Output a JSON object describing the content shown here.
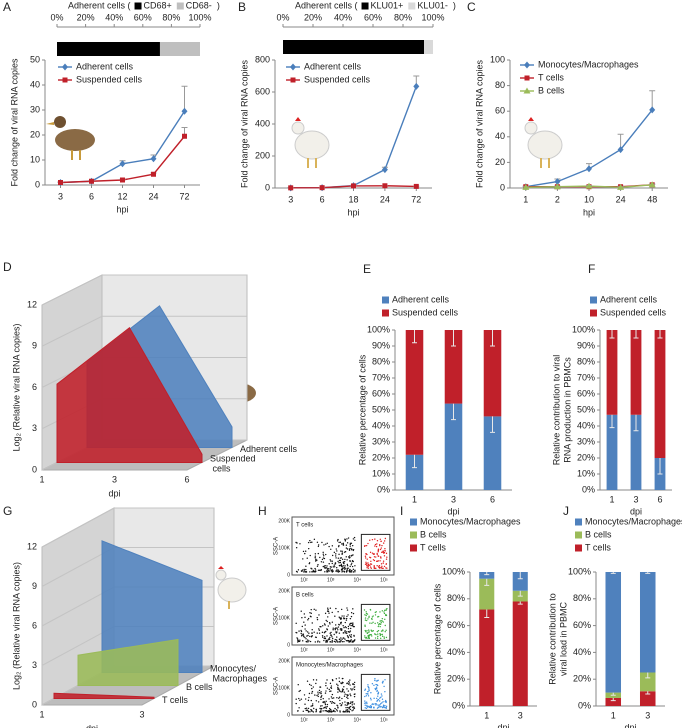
{
  "chart_data": [
    {
      "type": "hbar100",
      "title": "Adherent cells (",
      "title_end": ")",
      "xlim": [
        0,
        100
      ],
      "xticks": [
        {
          "value": 0,
          "label": "0%"
        },
        {
          "value": 20,
          "label": "20%"
        },
        {
          "value": 40,
          "label": "40%"
        },
        {
          "value": 60,
          "label": "60%"
        },
        {
          "value": 80,
          "label": "80%"
        },
        {
          "value": 100,
          "label": "100%"
        }
      ],
      "series": [
        {
          "name": "CD68+",
          "color": "#000000",
          "values": [
            72
          ]
        },
        {
          "name": "CD68-",
          "color": "#bfbfbf",
          "values": [
            28
          ]
        }
      ]
    },
    {
      "type": "line",
      "panel": "A",
      "categories": [
        "3",
        "6",
        "12",
        "24",
        "72"
      ],
      "xlabel": "hpi",
      "ylabel": "Fold change of viral RNA copies",
      "ylim": [
        0,
        50
      ],
      "yticks": [
        0,
        10,
        20,
        30,
        40,
        50
      ],
      "series": [
        {
          "name": "Adherent cells",
          "color": "#4a7ebb",
          "marker": "diamond",
          "values": [
            1,
            1.5,
            8.5,
            10.5,
            29.5
          ],
          "errors": [
            0.2,
            0.3,
            1.2,
            1.5,
            10
          ]
        },
        {
          "name": "Suspended cells",
          "color": "#c0202a",
          "marker": "square",
          "values": [
            1,
            1.5,
            2,
            4.3,
            19.5
          ],
          "errors": [
            0.2,
            0.2,
            0.3,
            0.5,
            3.5
          ]
        }
      ]
    },
    {
      "type": "hbar100",
      "title": "Adherent cells (",
      "title_end": ")",
      "xlim": [
        0,
        100
      ],
      "xticks": [
        {
          "value": 0,
          "label": "0%"
        },
        {
          "value": 20,
          "label": "20%"
        },
        {
          "value": 40,
          "label": "40%"
        },
        {
          "value": 60,
          "label": "60%"
        },
        {
          "value": 80,
          "label": "80%"
        },
        {
          "value": 100,
          "label": "100%"
        }
      ],
      "series": [
        {
          "name": "KLU01+",
          "color": "#000000",
          "values": [
            94
          ]
        },
        {
          "name": "KLU01-",
          "color": "#d9d9d9",
          "values": [
            6
          ]
        }
      ]
    },
    {
      "type": "line",
      "panel": "B",
      "categories": [
        "3",
        "6",
        "18",
        "24",
        "72"
      ],
      "xlabel": "hpi",
      "ylabel": "Fold change of viral RNA copies",
      "ylim": [
        0,
        800
      ],
      "yticks": [
        0,
        200,
        400,
        600,
        800
      ],
      "series": [
        {
          "name": "Adherent cells",
          "color": "#4a7ebb",
          "marker": "diamond",
          "values": [
            1,
            2,
            15,
            115,
            635
          ],
          "errors": [
            1,
            1,
            3,
            15,
            65
          ]
        },
        {
          "name": "Suspended cells",
          "color": "#c0202a",
          "marker": "square",
          "values": [
            1,
            2,
            13,
            14,
            10
          ],
          "errors": [
            1,
            1,
            2,
            2,
            2
          ]
        }
      ]
    },
    {
      "type": "line",
      "panel": "C",
      "categories": [
        "1",
        "2",
        "10",
        "24",
        "48"
      ],
      "xlabel": "hpi",
      "ylabel": "Fold change of viral RNA copies",
      "ylim": [
        0,
        100
      ],
      "yticks": [
        0,
        20,
        40,
        60,
        80,
        100
      ],
      "series": [
        {
          "name": "Monocytes/Macrophages",
          "color": "#4a7ebb",
          "marker": "diamond",
          "values": [
            1,
            5,
            15,
            30,
            61
          ],
          "errors": [
            0.5,
            2,
            4,
            12,
            15
          ]
        },
        {
          "name": "T cells",
          "color": "#c0202a",
          "marker": "square",
          "values": [
            1,
            1,
            1,
            1,
            2.5
          ],
          "errors": [
            0.5,
            0.5,
            0.5,
            0.5,
            0.5
          ]
        },
        {
          "name": "B cells",
          "color": "#9bbb59",
          "marker": "triangle",
          "values": [
            0.5,
            1,
            1.5,
            0.5,
            2.5
          ],
          "errors": [
            0.5,
            0.5,
            0.5,
            0.5,
            0.5
          ]
        }
      ]
    },
    {
      "type": "area3d",
      "panel": "D",
      "categories": [
        "1",
        "3",
        "6"
      ],
      "xlabel": "dpi",
      "ylabel": "Log₂ (Relative viral RNA copies)",
      "ylim": [
        0,
        12
      ],
      "yticks": [
        0,
        3,
        6,
        9,
        12
      ],
      "series": [
        {
          "name": "Adherent cells",
          "color": "#4f81bd",
          "values": [
            6.2,
            10.3,
            1.5
          ]
        },
        {
          "name": "Suspended cells",
          "color": "#c0202a",
          "values": [
            5.7,
            9.8,
            0.6
          ]
        }
      ]
    },
    {
      "type": "stacked100",
      "panel": "E",
      "categories": [
        "1",
        "3",
        "6"
      ],
      "xlabel": "dpi",
      "ylabel": [
        "Relative percentage of cells"
      ],
      "ylim": [
        0,
        100
      ],
      "yticks": [
        {
          "value": 0,
          "label": "0%"
        },
        {
          "value": 10,
          "label": "10%"
        },
        {
          "value": 20,
          "label": "20%"
        },
        {
          "value": 30,
          "label": "30%"
        },
        {
          "value": 40,
          "label": "40%"
        },
        {
          "value": 50,
          "label": "50%"
        },
        {
          "value": 60,
          "label": "60%"
        },
        {
          "value": 70,
          "label": "70%"
        },
        {
          "value": 80,
          "label": "80%"
        },
        {
          "value": 90,
          "label": "90%"
        },
        {
          "value": 100,
          "label": "100%"
        }
      ],
      "series": [
        {
          "name": "Adherent cells",
          "color": "#4f81bd",
          "values": [
            22,
            54,
            46
          ],
          "errors": [
            8,
            10,
            10
          ]
        },
        {
          "name": "Suspended cells",
          "color": "#c0202a",
          "values": [
            78,
            46,
            54
          ],
          "errors": [
            8,
            10,
            10
          ]
        }
      ]
    },
    {
      "type": "stacked100",
      "panel": "F",
      "categories": [
        "1",
        "3",
        "6"
      ],
      "xlabel": "dpi",
      "ylabel": [
        "Relative contribution to viral",
        "RNA production in PBMCs"
      ],
      "ylim": [
        0,
        100
      ],
      "yticks": [
        {
          "value": 0,
          "label": "0%"
        },
        {
          "value": 10,
          "label": "10%"
        },
        {
          "value": 20,
          "label": "20%"
        },
        {
          "value": 30,
          "label": "30%"
        },
        {
          "value": 40,
          "label": "40%"
        },
        {
          "value": 50,
          "label": "50%"
        },
        {
          "value": 60,
          "label": "60%"
        },
        {
          "value": 70,
          "label": "70%"
        },
        {
          "value": 80,
          "label": "80%"
        },
        {
          "value": 90,
          "label": "90%"
        },
        {
          "value": 100,
          "label": "100%"
        }
      ],
      "series": [
        {
          "name": "Adherent cells",
          "color": "#4f81bd",
          "values": [
            47,
            47,
            20
          ],
          "errors": [
            8,
            10,
            10
          ]
        },
        {
          "name": "Suspended cells",
          "color": "#c0202a",
          "values": [
            53,
            53,
            80
          ],
          "errors": [
            5,
            5,
            5
          ]
        }
      ]
    },
    {
      "type": "area3d",
      "panel": "G",
      "categories": [
        "1",
        "3"
      ],
      "xlabel": "dpi",
      "ylabel": "Log₂ (Relative viral RNA copies)",
      "ylim": [
        0,
        12
      ],
      "yticks": [
        0,
        3,
        6,
        9,
        12
      ],
      "series": [
        {
          "name": "Monocytes/ Macrophages",
          "color": "#4f81bd",
          "values": [
            10,
            7
          ]
        },
        {
          "name": "B cells",
          "color": "#9bbb59",
          "values": [
            2.3,
            3.5
          ]
        },
        {
          "name": "T cells",
          "color": "#c0202a",
          "values": [
            0.4,
            0.1
          ]
        }
      ]
    },
    {
      "type": "flow",
      "panel": "H",
      "ylabel": "SSC-A",
      "xticks": [
        "10²",
        "10³",
        "10⁴",
        "10⁵"
      ],
      "yticks": [
        "0",
        "100K",
        "200K"
      ],
      "gates": [
        {
          "title": "T cells",
          "color": "#e02020"
        },
        {
          "title": "B cells",
          "color": "#3fae3f"
        },
        {
          "title": "Monocytes/Macrophages",
          "color": "#3c8ee0"
        }
      ]
    },
    {
      "type": "stacked100",
      "panel": "I",
      "categories": [
        "1",
        "3"
      ],
      "xlabel": "dpi",
      "ylabel": [
        "Relative percentage of cells"
      ],
      "legend_order": "reversed",
      "ylim": [
        0,
        100
      ],
      "yticks": [
        {
          "value": 0,
          "label": "0%"
        },
        {
          "value": 20,
          "label": "20%"
        },
        {
          "value": 40,
          "label": "40%"
        },
        {
          "value": 60,
          "label": "60%"
        },
        {
          "value": 80,
          "label": "80%"
        },
        {
          "value": 100,
          "label": "100%"
        }
      ],
      "series": [
        {
          "name": "T cells",
          "color": "#c0202a",
          "values": [
            72,
            78
          ],
          "errors": [
            6,
            2
          ]
        },
        {
          "name": "B cells",
          "color": "#9bbb59",
          "values": [
            23,
            8
          ],
          "errors": [
            5,
            4
          ]
        },
        {
          "name": "Monocytes/Macrophages",
          "color": "#4f81bd",
          "values": [
            5,
            14
          ],
          "errors": [
            2,
            5
          ]
        }
      ]
    },
    {
      "type": "stacked100",
      "panel": "J",
      "categories": [
        "1",
        "3"
      ],
      "xlabel": "dpi",
      "ylabel": [
        "Relative contribution to",
        "viral load in PBMC"
      ],
      "legend_order": "reversed",
      "ylim": [
        0,
        100
      ],
      "yticks": [
        {
          "value": 0,
          "label": "0%"
        },
        {
          "value": 20,
          "label": "20%"
        },
        {
          "value": 40,
          "label": "40%"
        },
        {
          "value": 60,
          "label": "60%"
        },
        {
          "value": 80,
          "label": "80%"
        },
        {
          "value": 100,
          "label": "100%"
        }
      ],
      "series": [
        {
          "name": "T cells",
          "color": "#c0202a",
          "values": [
            6,
            11
          ],
          "errors": [
            2,
            2
          ]
        },
        {
          "name": "B cells",
          "color": "#9bbb59",
          "values": [
            4,
            14
          ],
          "errors": [
            2,
            4
          ]
        },
        {
          "name": "Monocytes/Macrophages",
          "color": "#4f81bd",
          "values": [
            90,
            75
          ],
          "errors": [
            1,
            1
          ]
        }
      ]
    }
  ]
}
